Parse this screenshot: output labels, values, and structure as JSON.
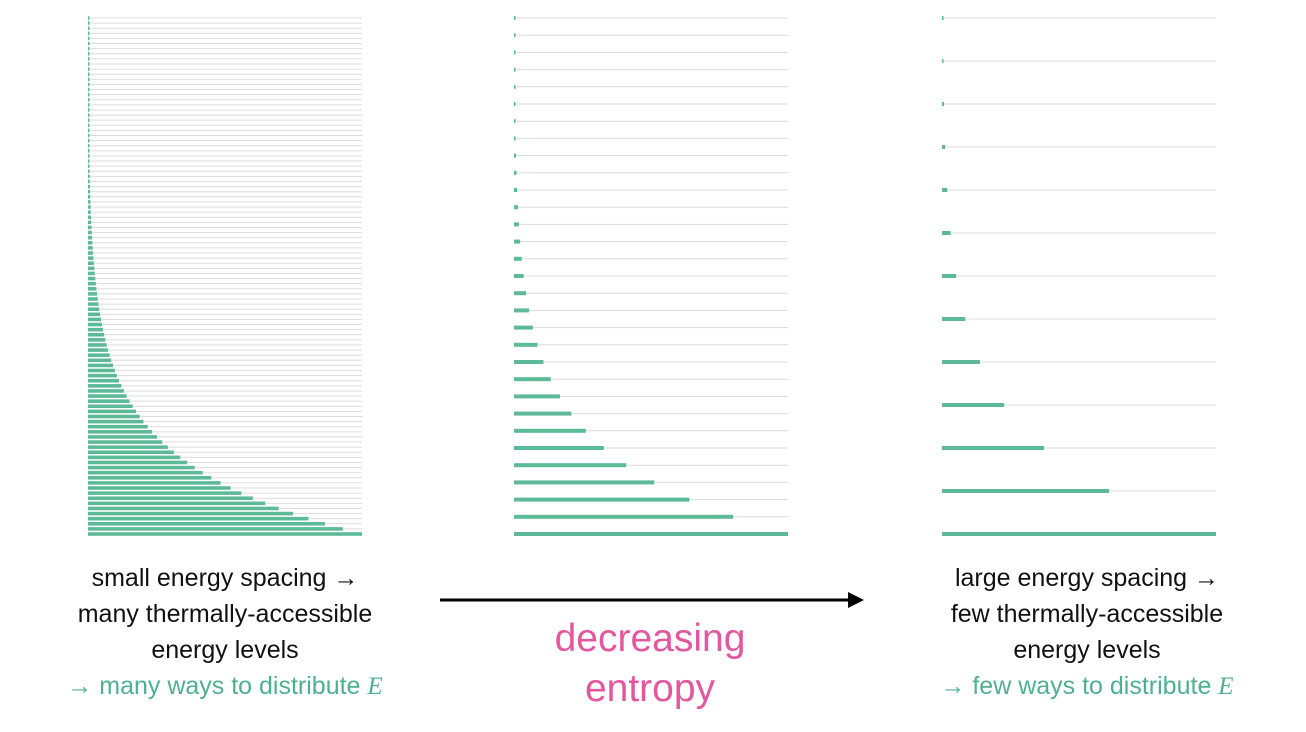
{
  "colors": {
    "bar": "#5dba98",
    "line": "#dcdcdc",
    "teal": "#4fb090",
    "pink": "#e3579f",
    "arrow": "#000000"
  },
  "panels": [
    {
      "name": "small-spacing",
      "levels_description": "many closely spaced levels",
      "level_count": 102,
      "occupation_decay_per_level": 0.93
    },
    {
      "name": "medium-spacing",
      "level_count": 31,
      "occupation_decay_per_level": 0.8
    },
    {
      "name": "large-spacing",
      "level_count": 13,
      "occupation_decay_per_level": 0.61
    }
  ],
  "left_caption": {
    "line1": "small energy spacing →",
    "line2": "many thermally-accessible",
    "line3": "energy levels",
    "line4": "→ many ways to distribute ",
    "symbol": "E"
  },
  "right_caption": {
    "line1": "large energy spacing →",
    "line2": "few thermally-accessible",
    "line3": "energy levels",
    "line4": "→ few ways to distribute ",
    "symbol": "E"
  },
  "arrow_label": {
    "line1": "decreasing",
    "line2": "entropy"
  }
}
